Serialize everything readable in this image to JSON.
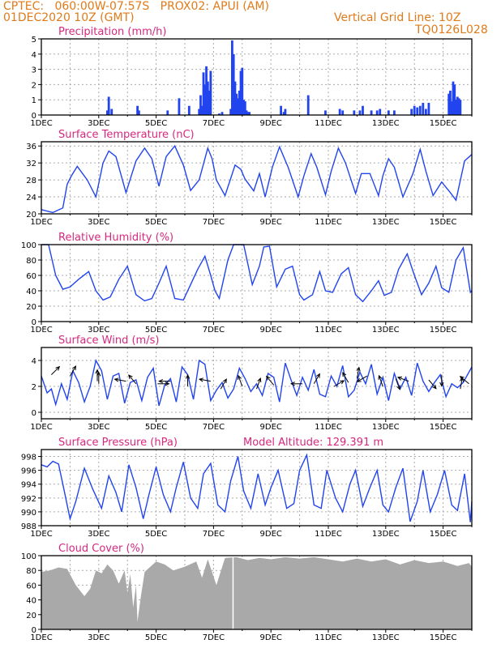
{
  "header": {
    "line1": "CPTEC:   060:00W-07:57S   PROX02: APUI (AM)",
    "line2_left": "01DEC2020 10Z (GMT)",
    "line2_right": "Vertical Grid Line: 10Z",
    "line3_right": "TQ0126L028",
    "model_altitude": "Model Altitude: 129.391  m"
  },
  "colors": {
    "header": "#e07b1a",
    "title": "#d6287f",
    "series": "#2244ee",
    "cloud": "#a9a9a9"
  },
  "x_tick_labels": [
    "1DEC",
    "3DEC",
    "5DEC",
    "7DEC",
    "9DEC",
    "11DEC",
    "13DEC",
    "15DEC"
  ],
  "chart_data": [
    {
      "type": "bar",
      "title": "Precipitation (mm/h)",
      "ylim": [
        0,
        5
      ],
      "yticks": [
        "0",
        "1",
        "2",
        "3",
        "4",
        "5"
      ],
      "x_range_days": [
        0,
        15
      ],
      "x_tick_labels": [
        "1DEC",
        "3DEC",
        "5DEC",
        "7DEC",
        "9DEC",
        "11DEC",
        "13DEC",
        "15DEC"
      ],
      "x": [
        2.3,
        2.35,
        2.45,
        3.35,
        3.4,
        4.4,
        4.8,
        5.15,
        5.5,
        5.55,
        5.6,
        5.65,
        5.7,
        5.75,
        5.8,
        5.85,
        5.9,
        6.2,
        6.3,
        6.6,
        6.65,
        6.7,
        6.75,
        6.8,
        6.85,
        6.9,
        6.95,
        7.0,
        7.05,
        7.1,
        7.15,
        7.2,
        7.25,
        8.35,
        8.45,
        8.5,
        9.3,
        9.9,
        10.4,
        10.5,
        10.9,
        11.1,
        11.2,
        11.5,
        11.7,
        11.8,
        12.1,
        12.3,
        12.9,
        13.0,
        13.1,
        13.2,
        13.3,
        13.4,
        13.5,
        14.2,
        14.25,
        14.3,
        14.35,
        14.4,
        14.45,
        14.5,
        14.55,
        14.6
      ],
      "values": [
        0.3,
        1.2,
        0.4,
        0.6,
        0.3,
        0.3,
        1.1,
        0.6,
        0.4,
        1.3,
        0.6,
        2.8,
        2.0,
        3.2,
        2.2,
        1.6,
        2.9,
        0.1,
        0.2,
        0.4,
        4.9,
        4.0,
        2.2,
        1.4,
        1.1,
        1.6,
        2.9,
        3.1,
        1.0,
        0.9,
        0.3,
        0.2,
        0.2,
        0.6,
        0.2,
        0.4,
        1.3,
        0.3,
        0.4,
        0.3,
        0.3,
        0.3,
        0.6,
        0.3,
        0.3,
        0.4,
        0.3,
        0.3,
        0.4,
        0.6,
        0.5,
        0.6,
        0.8,
        0.4,
        0.8,
        1.4,
        1.6,
        0.9,
        2.2,
        2.0,
        1.0,
        1.2,
        1.1,
        1.0
      ]
    },
    {
      "type": "line",
      "title": "Surface Temperature (nC)",
      "ylim": [
        20,
        37
      ],
      "yticks": [
        "20",
        "24",
        "28",
        "32",
        "36"
      ],
      "x_range_days": [
        0,
        15
      ],
      "x_tick_labels": [
        "1DEC",
        "3DEC",
        "5DEC",
        "7DEC",
        "9DEC",
        "11DEC",
        "13DEC",
        "15DEC"
      ],
      "x": [
        0,
        0.4,
        0.75,
        0.9,
        1.05,
        1.25,
        1.6,
        1.9,
        2.15,
        2.35,
        2.6,
        2.95,
        3.3,
        3.6,
        3.85,
        4.1,
        4.35,
        4.65,
        4.95,
        5.2,
        5.5,
        5.8,
        5.95,
        6.1,
        6.4,
        6.75,
        6.95,
        7.1,
        7.4,
        7.6,
        7.8,
        8.05,
        8.3,
        8.6,
        8.95,
        9.15,
        9.4,
        9.6,
        9.9,
        10.1,
        10.35,
        10.6,
        10.95,
        11.15,
        11.45,
        11.75,
        11.9,
        12.1,
        12.3,
        12.6,
        12.95,
        13.2,
        13.4,
        13.65,
        13.95,
        14.25,
        14.45,
        14.75,
        15.0
      ],
      "y": [
        21.0,
        20.3,
        21.4,
        27.0,
        29.0,
        31.2,
        28.0,
        24.0,
        32.0,
        34.8,
        33.5,
        25.0,
        32.5,
        35.5,
        33.0,
        26.5,
        33.5,
        36.0,
        31.5,
        25.5,
        28.0,
        35.5,
        33.0,
        28.0,
        24.3,
        31.5,
        30.5,
        28.2,
        25.4,
        29.5,
        24.0,
        31.0,
        35.8,
        31.0,
        24.0,
        29.0,
        34.2,
        31.0,
        24.5,
        30.0,
        35.5,
        32.0,
        24.8,
        29.5,
        29.5,
        24.3,
        29.0,
        33.0,
        31.0,
        24.0,
        29.5,
        35.2,
        30.0,
        24.3,
        27.5,
        25.0,
        23.2,
        32.5,
        34.0
      ]
    },
    {
      "type": "line",
      "title": "Relative Humidity (%)",
      "ylim": [
        0,
        100
      ],
      "yticks": [
        "0",
        "20",
        "40",
        "60",
        "80",
        "100"
      ],
      "x_range_days": [
        0,
        15
      ],
      "x_tick_labels": [
        "1DEC",
        "3DEC",
        "5DEC",
        "7DEC",
        "9DEC",
        "11DEC",
        "13DEC",
        "15DEC"
      ],
      "x": [
        0,
        0.25,
        0.5,
        0.75,
        1.0,
        1.3,
        1.65,
        1.9,
        2.15,
        2.4,
        2.7,
        3.0,
        3.3,
        3.6,
        3.85,
        4.1,
        4.35,
        4.65,
        4.95,
        5.2,
        5.45,
        5.7,
        5.9,
        6.05,
        6.2,
        6.5,
        6.7,
        6.85,
        7.05,
        7.35,
        7.6,
        7.75,
        7.95,
        8.2,
        8.5,
        8.75,
        9.0,
        9.15,
        9.45,
        9.7,
        9.9,
        10.15,
        10.45,
        10.7,
        10.95,
        11.2,
        11.5,
        11.75,
        11.95,
        12.2,
        12.45,
        12.75,
        13.0,
        13.25,
        13.5,
        13.75,
        13.95,
        14.2,
        14.45,
        14.7,
        14.95,
        15.0
      ],
      "y": [
        100,
        100,
        60,
        42,
        45,
        55,
        65,
        40,
        28,
        32,
        55,
        72,
        35,
        27,
        30,
        50,
        72,
        30,
        28,
        48,
        68,
        85,
        60,
        40,
        30,
        80,
        100,
        100,
        100,
        48,
        72,
        97,
        98,
        45,
        68,
        72,
        35,
        28,
        35,
        65,
        40,
        38,
        62,
        70,
        35,
        26,
        40,
        53,
        34,
        38,
        68,
        88,
        60,
        35,
        50,
        72,
        44,
        38,
        80,
        96,
        38,
        40
      ]
    },
    {
      "type": "line",
      "title": "Surface Wind (m/s)",
      "ylim": [
        -0.5,
        5
      ],
      "yticks": [
        "0",
        "2",
        "4"
      ],
      "x_range_days": [
        0,
        15
      ],
      "x_tick_labels": [
        "1DEC",
        "3DEC",
        "5DEC",
        "7DEC",
        "9DEC",
        "11DEC",
        "13DEC",
        "15DEC"
      ],
      "x": [
        0,
        0.2,
        0.35,
        0.5,
        0.7,
        0.9,
        1.1,
        1.3,
        1.5,
        1.7,
        1.9,
        2.1,
        2.3,
        2.5,
        2.7,
        2.9,
        3.1,
        3.3,
        3.5,
        3.7,
        3.9,
        4.1,
        4.3,
        4.5,
        4.7,
        4.9,
        5.1,
        5.3,
        5.5,
        5.7,
        5.9,
        6.1,
        6.3,
        6.5,
        6.7,
        6.9,
        7.1,
        7.3,
        7.5,
        7.7,
        7.9,
        8.1,
        8.3,
        8.5,
        8.7,
        8.9,
        9.1,
        9.3,
        9.5,
        9.7,
        9.9,
        10.1,
        10.3,
        10.5,
        10.7,
        10.9,
        11.1,
        11.3,
        11.5,
        11.7,
        11.9,
        12.1,
        12.3,
        12.5,
        12.7,
        12.9,
        13.1,
        13.3,
        13.5,
        13.7,
        13.9,
        14.1,
        14.3,
        14.5,
        14.7,
        14.9,
        15.0
      ],
      "y": [
        2.8,
        1.5,
        1.8,
        0.6,
        2.2,
        1.0,
        3.2,
        2.3,
        0.8,
        2.0,
        4.0,
        3.2,
        1.0,
        2.8,
        3.0,
        0.7,
        2.3,
        2.5,
        0.9,
        2.7,
        3.4,
        0.5,
        2.1,
        2.6,
        0.8,
        3.5,
        2.9,
        1.0,
        4.0,
        3.7,
        0.9,
        1.7,
        2.3,
        1.1,
        1.8,
        3.4,
        2.6,
        1.6,
        2.2,
        1.3,
        3.0,
        2.7,
        0.8,
        3.8,
        2.5,
        1.3,
        2.7,
        1.7,
        3.3,
        1.4,
        1.2,
        2.8,
        2.0,
        3.6,
        1.2,
        1.7,
        3.1,
        2.2,
        3.7,
        1.4,
        2.7,
        0.9,
        3.0,
        1.8,
        2.7,
        1.3,
        3.8,
        2.4,
        1.6,
        2.3,
        2.9,
        1.2,
        2.2,
        1.9,
        2.3,
        3.1,
        3.5
      ]
    },
    {
      "type": "line",
      "title": "Surface Pressure (hPa)",
      "ylim": [
        988,
        999
      ],
      "yticks": [
        "988",
        "990",
        "992",
        "994",
        "996",
        "998"
      ],
      "x_range_days": [
        0,
        15
      ],
      "x_tick_labels": [
        "1DEC",
        "3DEC",
        "5DEC",
        "7DEC",
        "9DEC",
        "11DEC",
        "13DEC",
        "15DEC"
      ],
      "x": [
        0,
        0.2,
        0.4,
        0.6,
        0.8,
        1.0,
        1.2,
        1.5,
        1.8,
        2.1,
        2.35,
        2.6,
        2.8,
        3.05,
        3.3,
        3.55,
        3.75,
        4.0,
        4.25,
        4.5,
        4.7,
        4.95,
        5.2,
        5.45,
        5.65,
        5.9,
        6.15,
        6.4,
        6.6,
        6.85,
        7.05,
        7.3,
        7.55,
        7.8,
        8.0,
        8.25,
        8.55,
        8.8,
        9.0,
        9.25,
        9.5,
        9.75,
        9.95,
        10.25,
        10.5,
        10.75,
        10.95,
        11.2,
        11.45,
        11.7,
        11.9,
        12.1,
        12.35,
        12.6,
        12.85,
        13.1,
        13.3,
        13.55,
        13.8,
        14.05,
        14.3,
        14.5,
        14.75,
        14.95,
        15.0
      ],
      "y": [
        996.8,
        996.5,
        997.3,
        996.9,
        993.0,
        989.0,
        991.5,
        996.3,
        993.2,
        990.5,
        995.2,
        992.8,
        990.0,
        996.8,
        993.5,
        989.0,
        992.5,
        996.5,
        992.5,
        990.0,
        993.5,
        997.2,
        992.0,
        990.5,
        995.5,
        997.0,
        991.0,
        990.0,
        994.5,
        998.0,
        993.0,
        990.5,
        995.5,
        991.0,
        993.5,
        996.0,
        990.5,
        991.2,
        996.0,
        998.2,
        991.0,
        990.5,
        996.0,
        992.0,
        990.0,
        994.0,
        996.0,
        990.8,
        993.5,
        996.0,
        991.0,
        990.0,
        993.5,
        996.3,
        988.6,
        991.5,
        996.0,
        990.0,
        992.5,
        996.0,
        991.0,
        990.2,
        995.5,
        988.5,
        991.5
      ]
    },
    {
      "type": "area",
      "title": "Cloud Cover (%)",
      "ylim": [
        0,
        100
      ],
      "yticks": [
        "0",
        "20",
        "40",
        "60",
        "80",
        "100"
      ],
      "x_range_days": [
        0,
        15
      ],
      "x_tick_labels": [
        "1DEC",
        "3DEC",
        "5DEC",
        "7DEC",
        "9DEC",
        "11DEC",
        "13DEC",
        "15DEC"
      ],
      "x": [
        0,
        0.3,
        0.6,
        0.9,
        1.2,
        1.5,
        1.7,
        1.9,
        2.1,
        2.3,
        2.5,
        2.7,
        2.9,
        3.0,
        3.1,
        3.2,
        3.3,
        3.35,
        3.45,
        3.6,
        3.8,
        4.0,
        4.3,
        4.6,
        5.0,
        5.4,
        5.6,
        5.8,
        6.1,
        6.4,
        6.8,
        7.2,
        7.6,
        8.0,
        8.5,
        9.0,
        9.5,
        10.0,
        10.5,
        11.0,
        11.5,
        12.0,
        12.5,
        13.0,
        13.5,
        14.0,
        14.5,
        14.9,
        15.0
      ],
      "y": [
        78,
        80,
        84,
        82,
        60,
        45,
        55,
        80,
        76,
        88,
        80,
        62,
        80,
        50,
        75,
        30,
        60,
        10,
        40,
        78,
        85,
        92,
        88,
        80,
        85,
        92,
        70,
        95,
        60,
        97,
        98,
        94,
        97,
        95,
        98,
        96,
        98,
        95,
        92,
        96,
        92,
        95,
        88,
        94,
        90,
        92,
        86,
        90,
        85
      ]
    }
  ],
  "wind_arrows": [
    {
      "x": 0.35,
      "y": 2.9,
      "dir_deg": 135
    },
    {
      "x": 1.0,
      "y": 2.8,
      "dir_deg": 150
    },
    {
      "x": 1.95,
      "y": 2.4,
      "dir_deg": 180
    },
    {
      "x": 2.0,
      "y": 2.2,
      "dir_deg": 180
    },
    {
      "x": 2.95,
      "y": 2.4,
      "dir_deg": 260
    },
    {
      "x": 3.3,
      "y": 2.2,
      "dir_deg": 220
    },
    {
      "x": 4.05,
      "y": 2.2,
      "dir_deg": 90
    },
    {
      "x": 4.5,
      "y": 2.4,
      "dir_deg": 270
    },
    {
      "x": 5.1,
      "y": 2.0,
      "dir_deg": 180
    },
    {
      "x": 5.9,
      "y": 2.4,
      "dir_deg": 260
    },
    {
      "x": 6.25,
      "y": 1.8,
      "dir_deg": 150
    },
    {
      "x": 7.0,
      "y": 2.0,
      "dir_deg": 200
    },
    {
      "x": 7.5,
      "y": 1.8,
      "dir_deg": 160
    },
    {
      "x": 8.1,
      "y": 2.1,
      "dir_deg": 220
    },
    {
      "x": 9.1,
      "y": 2.2,
      "dir_deg": 270
    },
    {
      "x": 9.5,
      "y": 2.2,
      "dir_deg": 150
    },
    {
      "x": 10.2,
      "y": 2.0,
      "dir_deg": 120
    },
    {
      "x": 10.7,
      "y": 2.3,
      "dir_deg": 210
    },
    {
      "x": 11.0,
      "y": 2.6,
      "dir_deg": 170
    },
    {
      "x": 11.35,
      "y": 2.8,
      "dir_deg": 300
    },
    {
      "x": 11.9,
      "y": 2.0,
      "dir_deg": 200
    },
    {
      "x": 12.35,
      "y": 2.6,
      "dir_deg": 20
    },
    {
      "x": 12.8,
      "y": 2.4,
      "dir_deg": 250
    },
    {
      "x": 13.5,
      "y": 2.5,
      "dir_deg": 40
    },
    {
      "x": 13.95,
      "y": 2.9,
      "dir_deg": 0
    },
    {
      "x": 14.6,
      "y": 1.8,
      "dir_deg": 170
    },
    {
      "x": 14.9,
      "y": 2.2,
      "dir_deg": 230
    }
  ]
}
